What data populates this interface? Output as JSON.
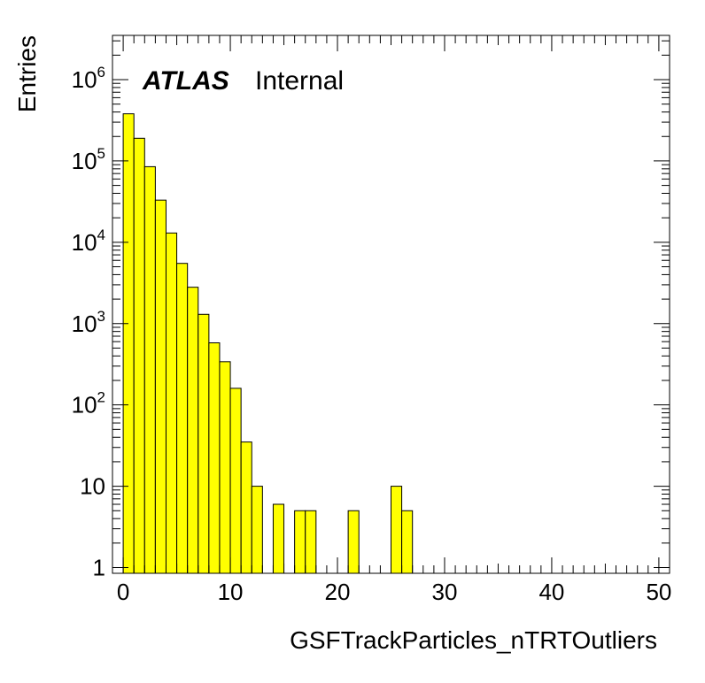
{
  "chart_data": {
    "type": "bar",
    "histogram": true,
    "bin_width": 1,
    "xlabel": "GSFTrackParticles_nTRTOutliers",
    "ylabel": "Entries",
    "xlim": [
      -1,
      51
    ],
    "ylim": [
      0.85,
      3500000
    ],
    "log_y": true,
    "grid": false,
    "fill_color": "#ffff00",
    "edge_color": "#000000",
    "label_main": "ATLAS",
    "label_sub": "Internal",
    "x_ticks": [
      "0",
      "10",
      "20",
      "30",
      "40",
      "50"
    ],
    "y_ticks": [
      {
        "base": "1",
        "exp": ""
      },
      {
        "base": "10",
        "exp": ""
      },
      {
        "base": "10",
        "exp": "2"
      },
      {
        "base": "10",
        "exp": "3"
      },
      {
        "base": "10",
        "exp": "4"
      },
      {
        "base": "10",
        "exp": "5"
      },
      {
        "base": "10",
        "exp": "6"
      }
    ],
    "bins": [
      {
        "x": 0,
        "y": 380000
      },
      {
        "x": 1,
        "y": 190000
      },
      {
        "x": 2,
        "y": 85000
      },
      {
        "x": 3,
        "y": 33000
      },
      {
        "x": 4,
        "y": 13000
      },
      {
        "x": 5,
        "y": 5500
      },
      {
        "x": 6,
        "y": 2800
      },
      {
        "x": 7,
        "y": 1300
      },
      {
        "x": 8,
        "y": 580
      },
      {
        "x": 9,
        "y": 340
      },
      {
        "x": 10,
        "y": 160
      },
      {
        "x": 11,
        "y": 35
      },
      {
        "x": 12,
        "y": 10
      },
      {
        "x": 14,
        "y": 6
      },
      {
        "x": 16,
        "y": 5
      },
      {
        "x": 17,
        "y": 5
      },
      {
        "x": 21,
        "y": 5
      },
      {
        "x": 25,
        "y": 10
      },
      {
        "x": 26,
        "y": 5
      }
    ]
  }
}
